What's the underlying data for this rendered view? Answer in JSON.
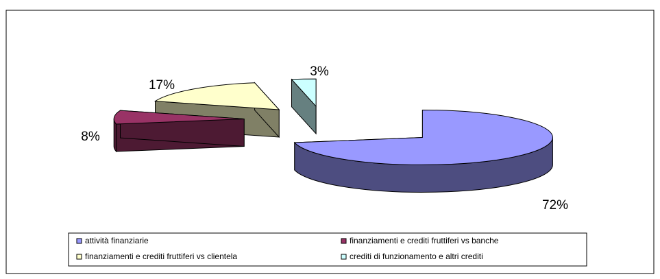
{
  "chart_data": {
    "type": "pie",
    "categories": [
      "attività finanziarie",
      "finanziamenti e crediti fruttiferi vs banche",
      "finanziamenti e crediti fruttiferi vs clientela",
      "crediti di funzionamento e altri crediti"
    ],
    "values": [
      72,
      8,
      17,
      3
    ],
    "value_labels": [
      "72%",
      "8%",
      "17%",
      "3%"
    ],
    "colors": [
      "#9999ff",
      "#993366",
      "#ffffcc",
      "#ccffff"
    ]
  }
}
